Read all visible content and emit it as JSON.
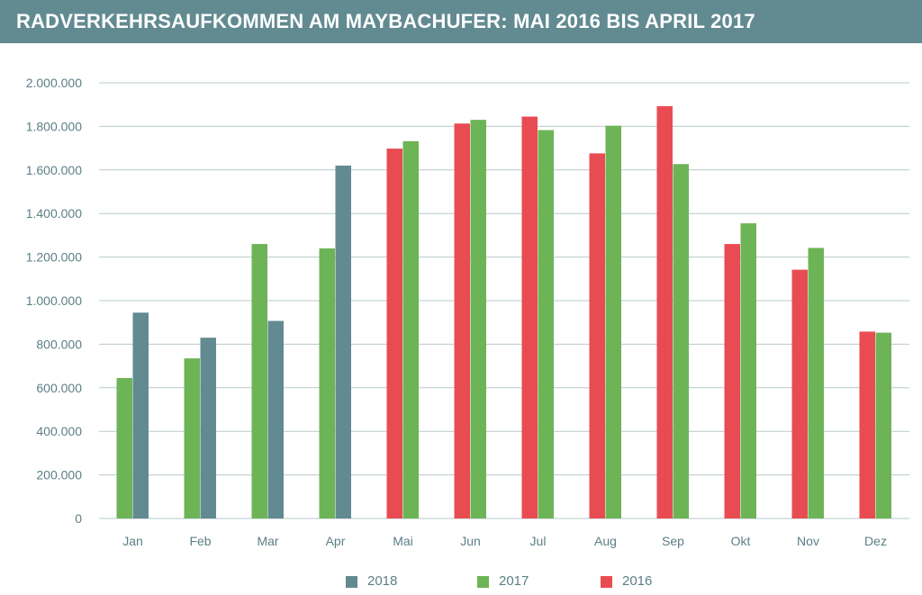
{
  "title": "RADVERKEHRSAUFKOMMEN AM MAYBACHUFER: MAI 2016 BIS APRIL 2017",
  "colors": {
    "header_bg": "#628a91",
    "2018": "#628a91",
    "2017": "#6db456",
    "2016": "#e84c52",
    "grid": "#b8c9cc",
    "text": "#5b7f86"
  },
  "chart_data": {
    "type": "bar",
    "title": "RADVERKEHRSAUFKOMMEN AM MAYBACHUFER: MAI 2016 BIS APRIL 2017",
    "categories": [
      "Jan",
      "Feb",
      "Mar",
      "Apr",
      "Mai",
      "Jun",
      "Jul",
      "Aug",
      "Sep",
      "Okt",
      "Nov",
      "Dez"
    ],
    "ylim": [
      0,
      2000000
    ],
    "yticks": [
      0,
      200000,
      400000,
      600000,
      800000,
      1000000,
      1200000,
      1400000,
      1600000,
      1800000,
      2000000
    ],
    "ytick_labels": [
      "0",
      "200.000",
      "400.000",
      "600.000",
      "800.000",
      "1.000.000",
      "1.200.000",
      "1.400.000",
      "1.600.000",
      "1.800.000",
      "2.000.000"
    ],
    "grid": true,
    "legend_position": "bottom",
    "legend": [
      "2018",
      "2017",
      "2016"
    ],
    "bars": [
      {
        "category": "Jan",
        "series": "2017",
        "value": 645000
      },
      {
        "category": "Jan",
        "series": "2018",
        "value": 945000
      },
      {
        "category": "Feb",
        "series": "2017",
        "value": 735000
      },
      {
        "category": "Feb",
        "series": "2018",
        "value": 830000
      },
      {
        "category": "Mar",
        "series": "2017",
        "value": 1260000
      },
      {
        "category": "Mar",
        "series": "2018",
        "value": 907000
      },
      {
        "category": "Apr",
        "series": "2017",
        "value": 1240000
      },
      {
        "category": "Apr",
        "series": "2018",
        "value": 1620000
      },
      {
        "category": "Mai",
        "series": "2016",
        "value": 1698000
      },
      {
        "category": "Mai",
        "series": "2017",
        "value": 1732000
      },
      {
        "category": "Jun",
        "series": "2016",
        "value": 1813000
      },
      {
        "category": "Jun",
        "series": "2017",
        "value": 1830000
      },
      {
        "category": "Jul",
        "series": "2016",
        "value": 1845000
      },
      {
        "category": "Jul",
        "series": "2017",
        "value": 1783000
      },
      {
        "category": "Aug",
        "series": "2016",
        "value": 1676000
      },
      {
        "category": "Aug",
        "series": "2017",
        "value": 1803000
      },
      {
        "category": "Sep",
        "series": "2016",
        "value": 1893000
      },
      {
        "category": "Sep",
        "series": "2017",
        "value": 1627000
      },
      {
        "category": "Okt",
        "series": "2016",
        "value": 1260000
      },
      {
        "category": "Okt",
        "series": "2017",
        "value": 1355000
      },
      {
        "category": "Nov",
        "series": "2016",
        "value": 1142000
      },
      {
        "category": "Nov",
        "series": "2017",
        "value": 1242000
      },
      {
        "category": "Dez",
        "series": "2016",
        "value": 858000
      },
      {
        "category": "Dez",
        "series": "2017",
        "value": 853000
      }
    ]
  }
}
